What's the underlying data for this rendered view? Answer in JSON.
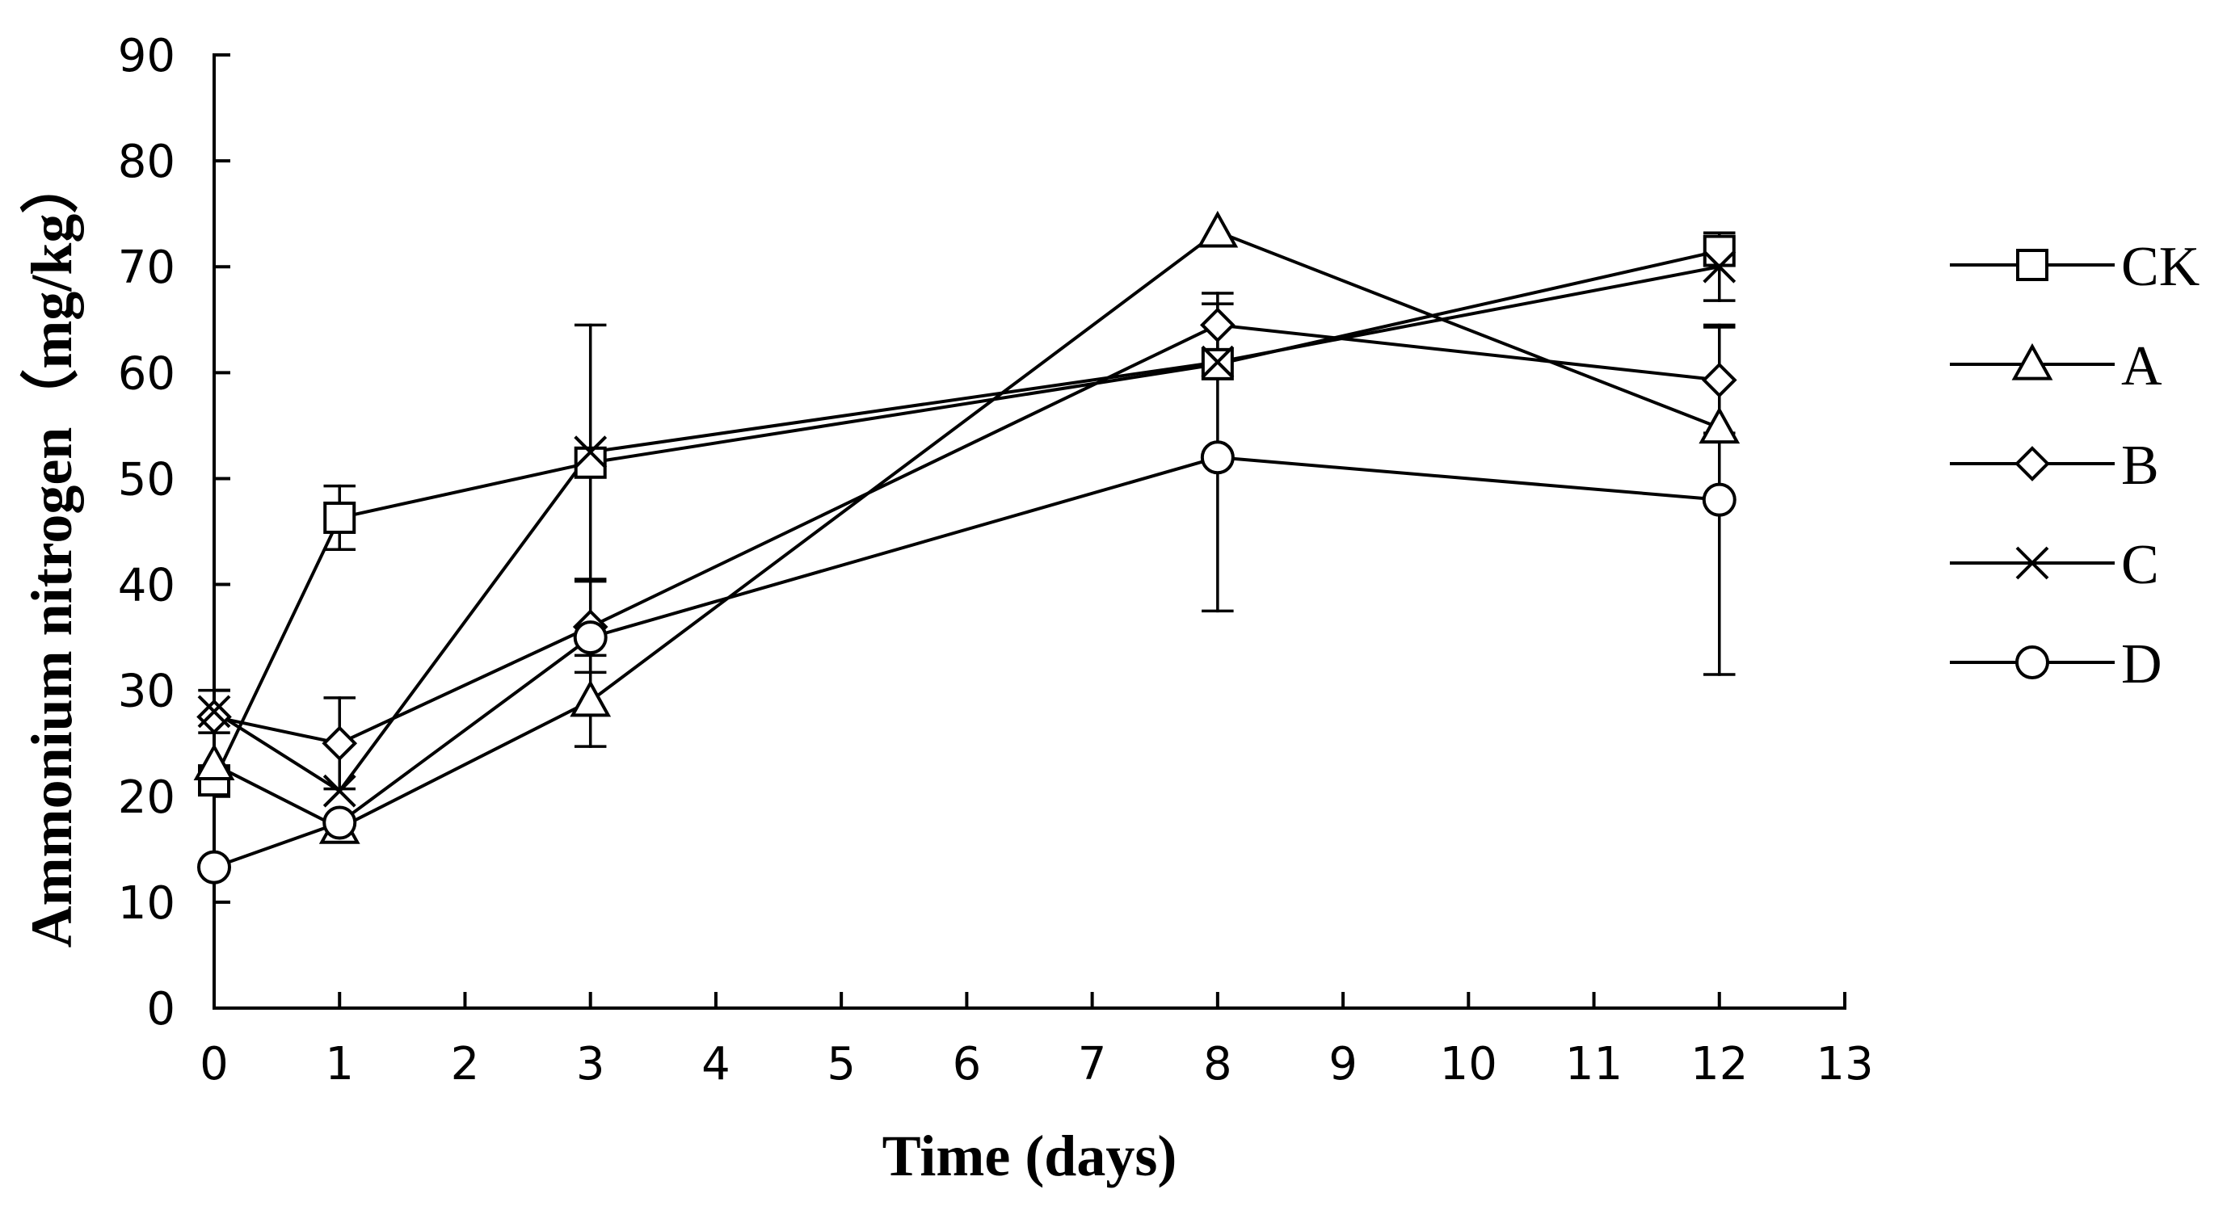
{
  "chart_data": {
    "type": "line",
    "title": "",
    "xlabel": "Time (days)",
    "ylabel": "Ammonium nitrogen（mg/kg）",
    "x": [
      0,
      1,
      3,
      8,
      12
    ],
    "xlim": [
      0,
      13
    ],
    "ylim": [
      0,
      90
    ],
    "xticks": [
      0,
      1,
      2,
      3,
      4,
      5,
      6,
      7,
      8,
      9,
      10,
      11,
      12,
      13
    ],
    "yticks": [
      0,
      10,
      20,
      30,
      40,
      50,
      60,
      70,
      80,
      90
    ],
    "grid": false,
    "legend_position": "right",
    "series": [
      {
        "name": "CK",
        "marker": "square",
        "values": [
          21.5,
          46.3,
          51.5,
          60.8,
          71.5
        ],
        "error": [
          0,
          3.0,
          0,
          0,
          0
        ]
      },
      {
        "name": "A",
        "marker": "triangle",
        "values": [
          23,
          17,
          29,
          73.3,
          54.8
        ],
        "error": [
          0,
          0,
          4.3,
          0,
          0
        ]
      },
      {
        "name": "B",
        "marker": "diamond",
        "values": [
          27.5,
          25,
          36,
          64.5,
          59.3
        ],
        "error": [
          0,
          4.3,
          4.3,
          3.0,
          5.0
        ]
      },
      {
        "name": "C",
        "marker": "x",
        "values": [
          28,
          20.5,
          52.5,
          61.0,
          70.0
        ],
        "error": [
          2.0,
          0,
          12.0,
          0,
          3.2
        ]
      },
      {
        "name": "D",
        "marker": "circle",
        "values": [
          13.3,
          17.5,
          35,
          52,
          48
        ],
        "error": [
          0,
          0,
          0,
          14.5,
          16.5
        ]
      }
    ]
  }
}
